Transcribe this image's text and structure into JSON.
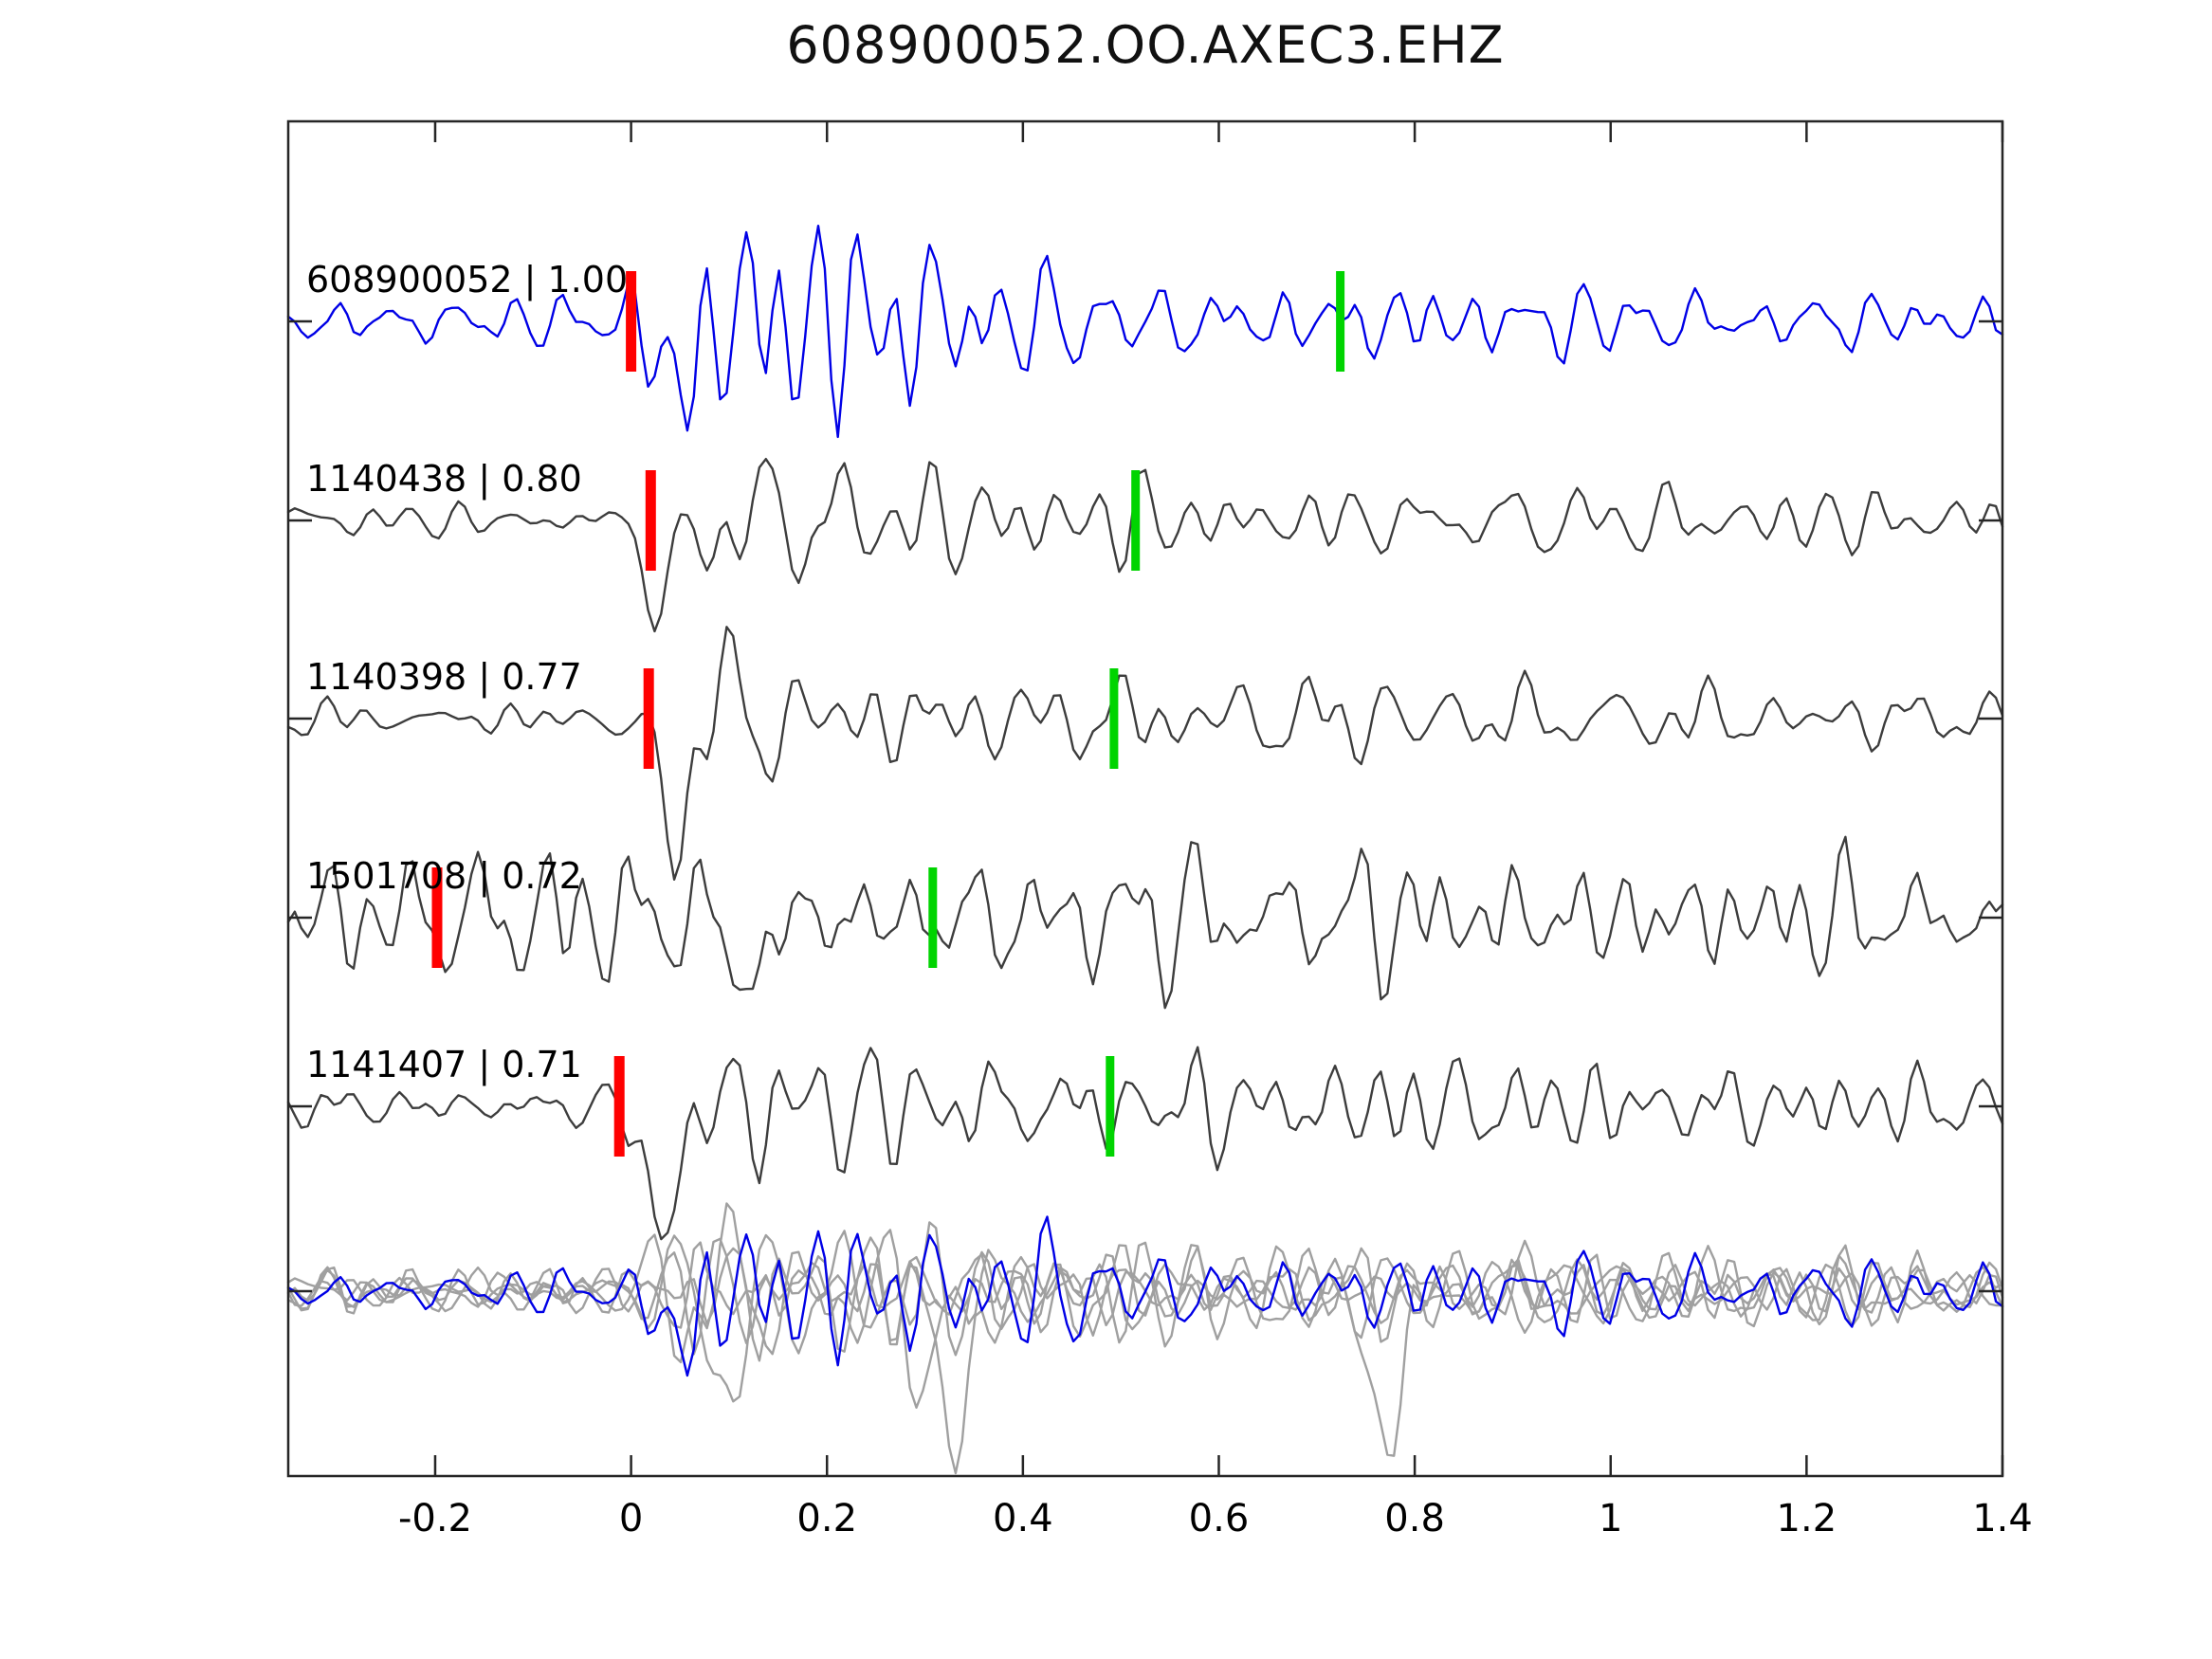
{
  "title": "608900052.OO.AXEC3.EHZ",
  "chart_data": {
    "type": "line",
    "title": "608900052.OO.AXEC3.EHZ",
    "xlabel": "",
    "ylabel": "",
    "xlim": [
      -0.35,
      1.4
    ],
    "x_ticks": [
      -0.2,
      0,
      0.2,
      0.4,
      0.6,
      0.8,
      1,
      1.2,
      1.4
    ],
    "x_tick_labels": [
      "-0.2",
      "0",
      "0.2",
      "0.4",
      "0.6",
      "0.8",
      "1",
      "1.2",
      "1.4"
    ],
    "grid": false,
    "legend_position": "none",
    "colors": {
      "template_trace": "#0000e6",
      "detection_trace": "#3d3d3d",
      "overlay_gray_trace": "#a0a0a0",
      "pick_red": "#ff0000",
      "pick_green": "#00d400",
      "axis": "#262626",
      "text": "#000000"
    },
    "traces": [
      {
        "label": "608900052 | 1.00",
        "id": "608900052",
        "correlation": 1.0,
        "color_role": "template_trace",
        "red_pick_x": 0.0,
        "green_pick_x": 0.724,
        "synth": {
          "seed": 7,
          "amp": 92,
          "envelope": [
            [
              -0.35,
              0.26
            ],
            [
              -0.02,
              0.25
            ],
            [
              0.05,
              0.85
            ],
            [
              0.14,
              1.15
            ],
            [
              0.3,
              0.9
            ],
            [
              0.44,
              0.45
            ],
            [
              0.8,
              0.42
            ],
            [
              1.05,
              0.33
            ],
            [
              1.4,
              0.3
            ]
          ],
          "spike": {
            "x": 0.045,
            "amp": -0.9
          }
        }
      },
      {
        "label": "1140438 | 0.80",
        "id": "1140438",
        "correlation": 0.8,
        "color_role": "detection_trace",
        "red_pick_x": 0.02,
        "green_pick_x": 0.515,
        "synth": {
          "seed": 101,
          "amp": 74,
          "envelope": [
            [
              -0.35,
              0.24
            ],
            [
              0.0,
              0.24
            ],
            [
              0.05,
              1.0
            ],
            [
              0.14,
              0.85
            ],
            [
              0.3,
              0.65
            ],
            [
              0.5,
              0.58
            ],
            [
              0.85,
              0.46
            ],
            [
              1.4,
              0.38
            ]
          ],
          "spike": {
            "x": 0.035,
            "amp": -1.5
          }
        }
      },
      {
        "label": "1140398 | 0.77",
        "id": "1140398",
        "correlation": 0.77,
        "color_role": "detection_trace",
        "red_pick_x": 0.018,
        "green_pick_x": 0.493,
        "synth": {
          "seed": 222,
          "amp": 72,
          "envelope": [
            [
              -0.35,
              0.26
            ],
            [
              0.0,
              0.26
            ],
            [
              0.05,
              1.0
            ],
            [
              0.16,
              0.88
            ],
            [
              0.32,
              0.7
            ],
            [
              0.52,
              0.6
            ],
            [
              0.9,
              0.48
            ],
            [
              1.4,
              0.4
            ]
          ],
          "spike": {
            "x": 0.035,
            "amp": -1.5
          }
        }
      },
      {
        "label": "1501708 | 0.72",
        "id": "1501708",
        "correlation": 0.72,
        "color_role": "detection_trace",
        "red_pick_x": -0.198,
        "green_pick_x": 0.308,
        "synth": {
          "seed": 333,
          "amp": 70,
          "envelope": [
            [
              -0.35,
              0.55
            ],
            [
              -0.2,
              0.8
            ],
            [
              -0.05,
              0.92
            ],
            [
              0.1,
              1.0
            ],
            [
              0.45,
              0.95
            ],
            [
              0.7,
              0.82
            ],
            [
              1.0,
              0.78
            ],
            [
              1.4,
              0.72
            ]
          ],
          "spike": {
            "x": 0.12,
            "amp": -1.1
          }
        }
      },
      {
        "label": "1141407 | 0.71",
        "id": "1141407",
        "correlation": 0.71,
        "color_role": "detection_trace",
        "red_pick_x": -0.012,
        "green_pick_x": 0.489,
        "synth": {
          "seed": 444,
          "amp": 72,
          "envelope": [
            [
              -0.35,
              0.3
            ],
            [
              -0.02,
              0.3
            ],
            [
              0.04,
              1.0
            ],
            [
              0.3,
              0.88
            ],
            [
              0.5,
              0.78
            ],
            [
              0.78,
              0.6
            ],
            [
              1.1,
              0.5
            ],
            [
              1.4,
              0.46
            ]
          ],
          "spike": {
            "x": 0.032,
            "amp": -2.0
          }
        }
      }
    ],
    "overlay_row": {
      "note": "all detections overlaid (gray) with template (blue)",
      "traces": [
        {
          "color_role": "overlay_gray_trace",
          "synth": {
            "seed": 101,
            "amp": 62,
            "envelope": [
              [
                -0.35,
                0.3
              ],
              [
                0.0,
                0.35
              ],
              [
                0.06,
                1.0
              ],
              [
                0.35,
                0.9
              ],
              [
                0.55,
                0.62
              ],
              [
                0.95,
                0.52
              ],
              [
                1.4,
                0.46
              ]
            ],
            "spike": {
              "x": 0.1,
              "amp": -1.6
            }
          }
        },
        {
          "color_role": "overlay_gray_trace",
          "synth": {
            "seed": 222,
            "amp": 66,
            "envelope": [
              [
                -0.35,
                0.3
              ],
              [
                0.0,
                0.35
              ],
              [
                0.06,
                1.0
              ],
              [
                0.35,
                0.92
              ],
              [
                0.55,
                0.64
              ],
              [
                0.95,
                0.54
              ],
              [
                1.4,
                0.46
              ]
            ],
            "spike": {
              "x": 0.33,
              "amp": -2.6
            }
          }
        },
        {
          "color_role": "overlay_gray_trace",
          "synth": {
            "seed": 333,
            "amp": 58,
            "envelope": [
              [
                -0.35,
                0.34
              ],
              [
                0.0,
                0.38
              ],
              [
                0.06,
                1.0
              ],
              [
                0.35,
                0.9
              ],
              [
                0.55,
                0.66
              ],
              [
                0.95,
                0.56
              ],
              [
                1.4,
                0.48
              ]
            ],
            "spike": null
          }
        },
        {
          "color_role": "overlay_gray_trace",
          "synth": {
            "seed": 444,
            "amp": 64,
            "envelope": [
              [
                -0.35,
                0.3
              ],
              [
                0.0,
                0.35
              ],
              [
                0.06,
                1.0
              ],
              [
                0.35,
                0.9
              ],
              [
                0.55,
                0.62
              ],
              [
                0.95,
                0.52
              ],
              [
                1.4,
                0.46
              ]
            ],
            "spike": {
              "x": 0.77,
              "amp": -2.8
            }
          }
        },
        {
          "color_role": "overlay_gray_trace",
          "synth": {
            "seed": 555,
            "amp": 60,
            "envelope": [
              [
                -0.35,
                0.32
              ],
              [
                0.0,
                0.36
              ],
              [
                0.06,
                1.0
              ],
              [
                0.35,
                0.9
              ],
              [
                0.55,
                0.64
              ],
              [
                0.95,
                0.54
              ],
              [
                1.4,
                0.48
              ]
            ],
            "spike": {
              "x": 0.3,
              "amp": -1.4
            }
          }
        },
        {
          "color_role": "template_trace",
          "synth": {
            "seed": 7,
            "amp": 64,
            "envelope": [
              [
                -0.35,
                0.28
              ],
              [
                0.0,
                0.32
              ],
              [
                0.06,
                1.0
              ],
              [
                0.35,
                0.92
              ],
              [
                0.55,
                0.64
              ],
              [
                0.95,
                0.56
              ],
              [
                1.4,
                0.5
              ]
            ],
            "spike": {
              "x": 0.045,
              "amp": -1.0
            }
          }
        }
      ]
    }
  }
}
